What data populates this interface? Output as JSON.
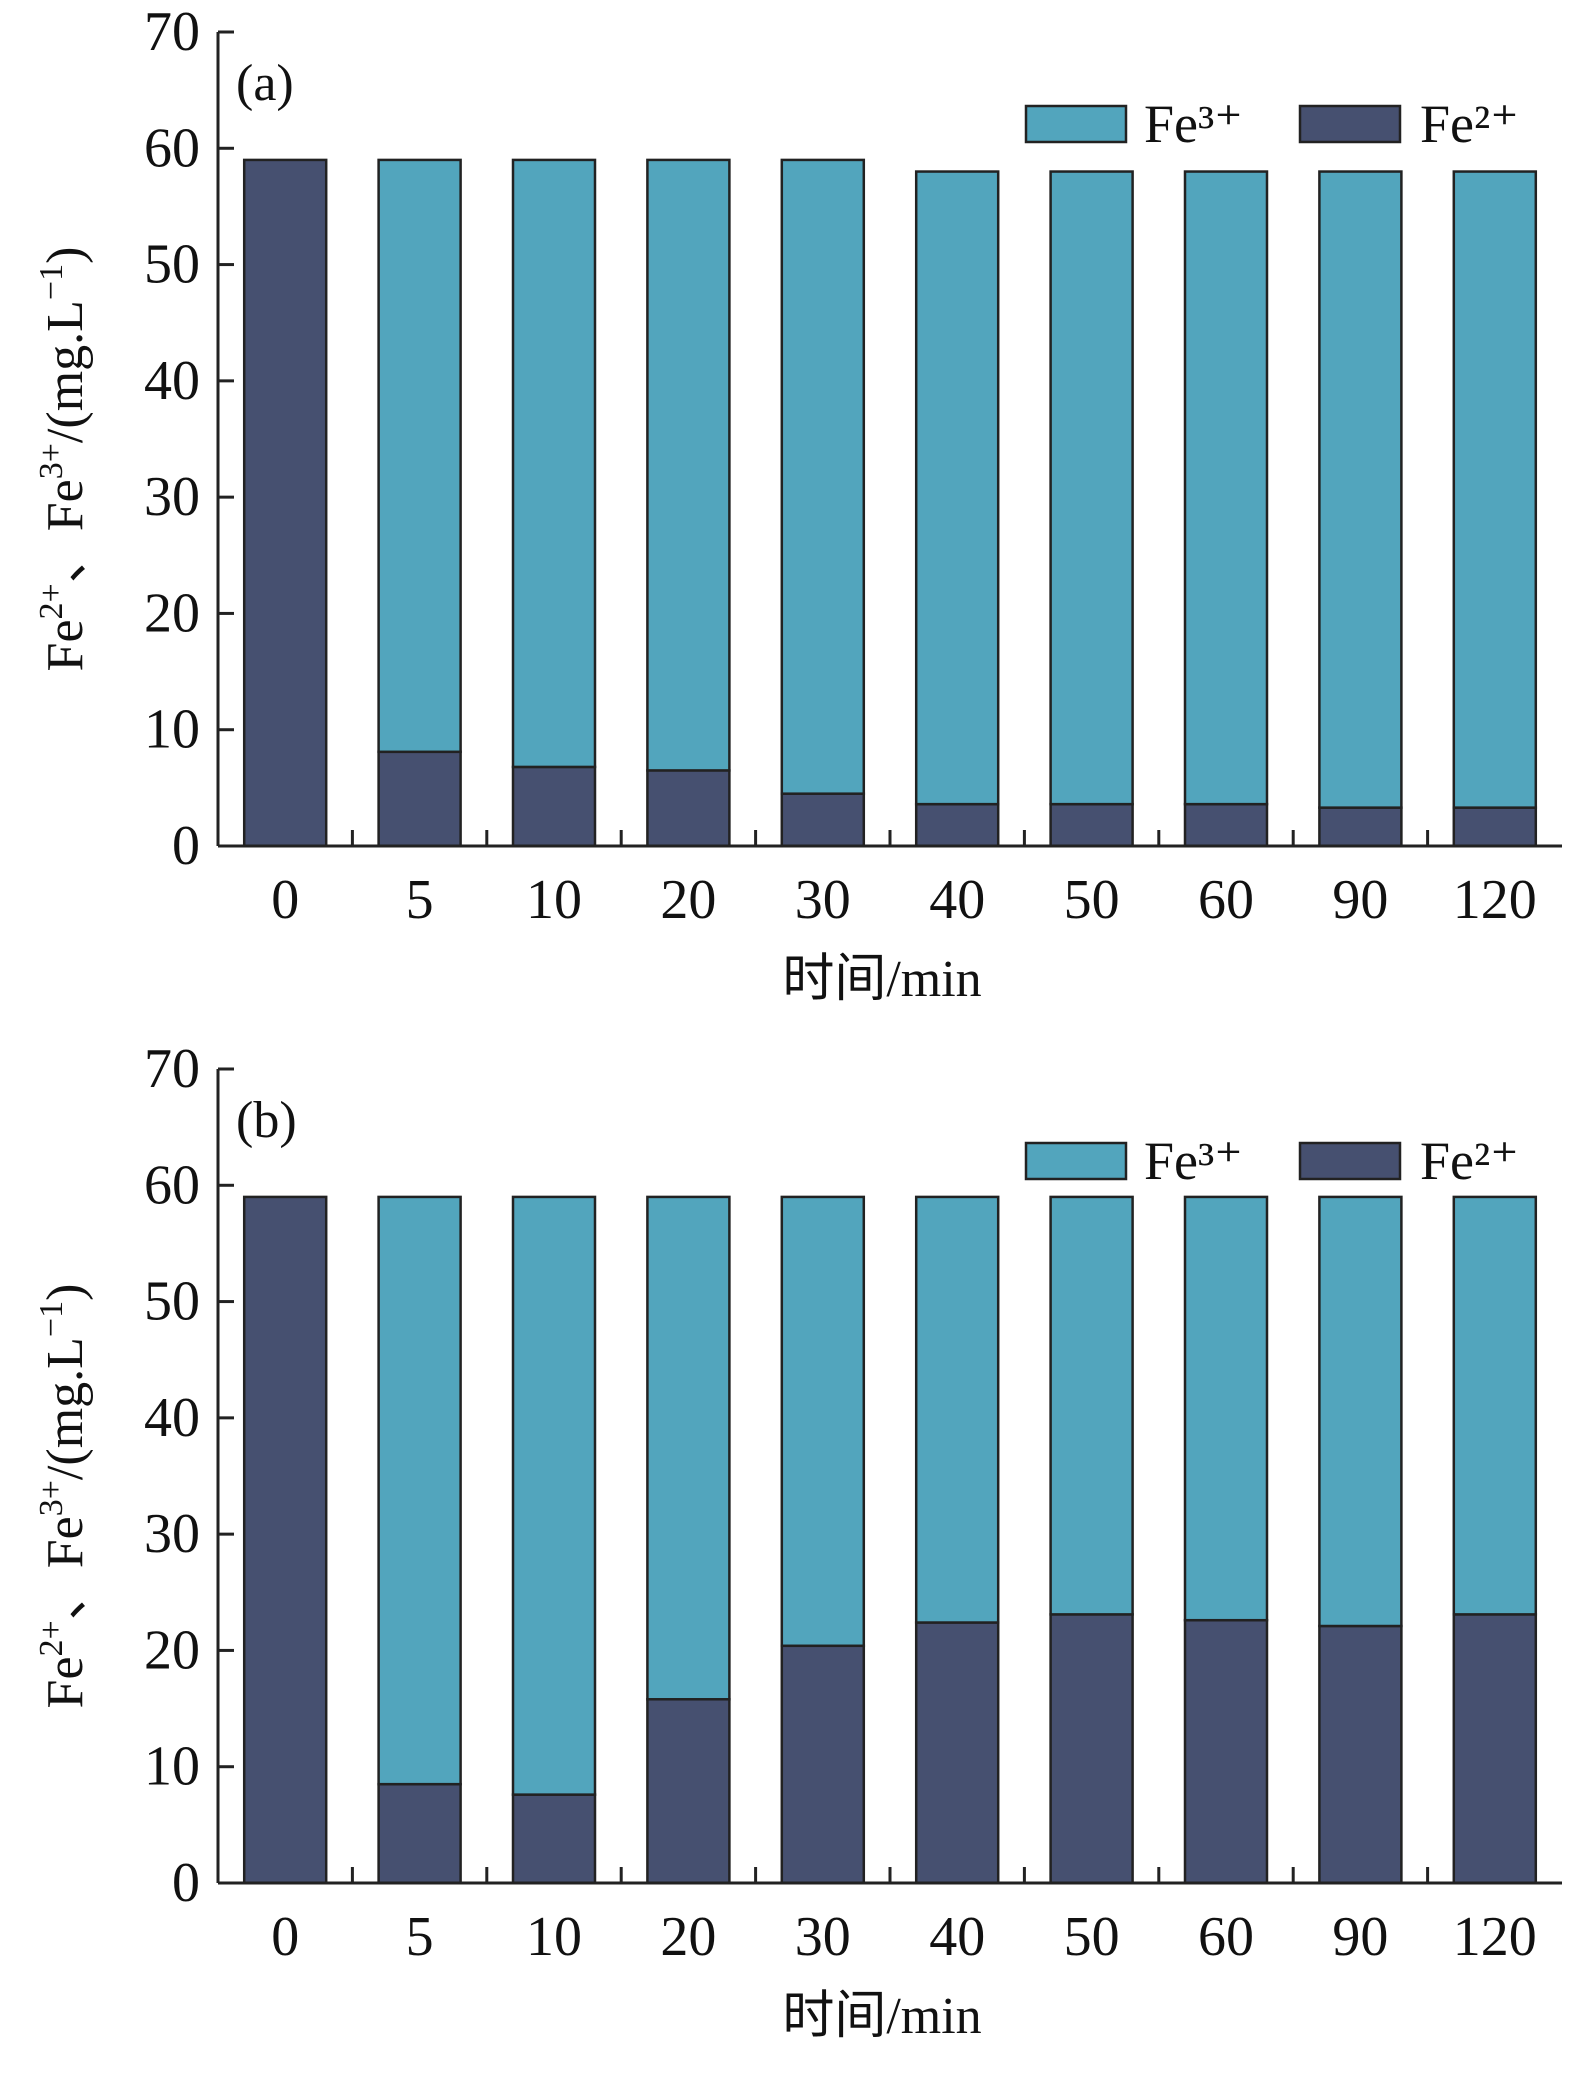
{
  "colors": {
    "fe3": "#52A5BD",
    "fe2": "#465070"
  },
  "chart_data": [
    {
      "type": "bar",
      "stacked": true,
      "panel_label": "(a)",
      "xlabel": "时间/min",
      "ylabel_parts": [
        "Fe",
        "2+",
        "、Fe",
        "3+",
        "/(mg.L",
        "−1",
        ")"
      ],
      "categories": [
        "0",
        "5",
        "10",
        "20",
        "30",
        "40",
        "50",
        "60",
        "90",
        "120"
      ],
      "ylim": [
        0,
        70
      ],
      "yticks": [
        "0",
        "10",
        "20",
        "30",
        "40",
        "50",
        "60",
        "70"
      ],
      "legend": [
        "Fe³⁺",
        "Fe²⁺"
      ],
      "series": [
        {
          "name": "Fe²⁺",
          "values": [
            59,
            8.1,
            6.8,
            6.5,
            4.5,
            3.6,
            3.6,
            3.6,
            3.3,
            3.3
          ]
        },
        {
          "name": "Fe³⁺",
          "values": [
            0,
            50.9,
            52.2,
            52.5,
            54.5,
            54.4,
            54.4,
            54.4,
            54.7,
            54.7
          ]
        }
      ]
    },
    {
      "type": "bar",
      "stacked": true,
      "panel_label": "(b)",
      "xlabel": "时间/min",
      "ylabel_parts": [
        "Fe",
        "2+",
        "、Fe",
        "3+",
        "/(mg.L",
        "−1",
        ")"
      ],
      "categories": [
        "0",
        "5",
        "10",
        "20",
        "30",
        "40",
        "50",
        "60",
        "90",
        "120"
      ],
      "ylim": [
        0,
        70
      ],
      "yticks": [
        "0",
        "10",
        "20",
        "30",
        "40",
        "50",
        "60",
        "70"
      ],
      "legend": [
        "Fe³⁺",
        "Fe²⁺"
      ],
      "series": [
        {
          "name": "Fe²⁺",
          "values": [
            59,
            8.5,
            7.6,
            15.8,
            20.4,
            22.4,
            23.1,
            22.6,
            22.1,
            23.1
          ]
        },
        {
          "name": "Fe³⁺",
          "values": [
            0,
            50.5,
            51.4,
            43.2,
            38.6,
            36.6,
            35.9,
            36.4,
            36.9,
            35.9
          ]
        }
      ]
    }
  ]
}
